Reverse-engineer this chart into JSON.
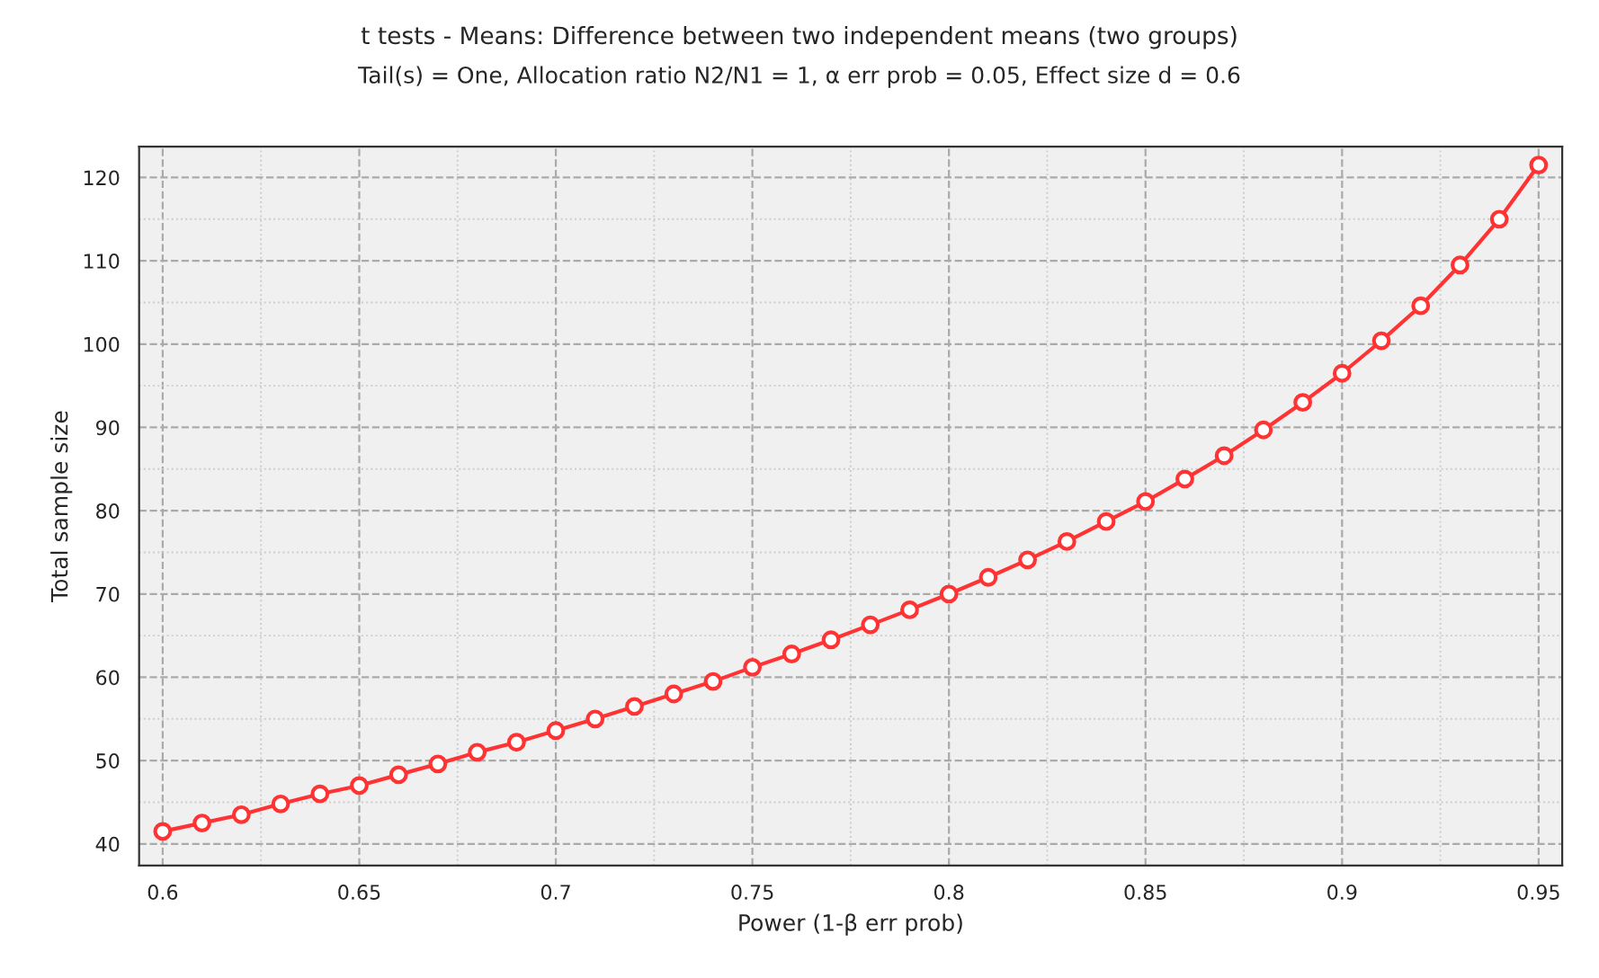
{
  "chart_data": {
    "type": "line",
    "title": "t tests - Means: Difference between two independent means (two groups)",
    "subtitle": "Tail(s) = One, Allocation ratio N2/N1 = 1, α err prob = 0.05, Effect size d = 0.6",
    "xlabel": "Power (1-β err prob)",
    "ylabel": "Total sample size",
    "x": [
      0.6,
      0.61,
      0.62,
      0.63,
      0.64,
      0.65,
      0.66,
      0.67,
      0.68,
      0.69,
      0.7,
      0.71,
      0.72,
      0.73,
      0.74,
      0.75,
      0.76,
      0.77,
      0.78,
      0.79,
      0.8,
      0.81,
      0.82,
      0.83,
      0.84,
      0.85,
      0.86,
      0.87,
      0.88,
      0.89,
      0.9,
      0.91,
      0.92,
      0.93,
      0.94,
      0.95
    ],
    "series": [
      {
        "color": "#ff3333",
        "values": [
          41.5,
          42.5,
          43.5,
          44.8,
          46,
          47,
          48.3,
          49.6,
          51,
          52.2,
          53.6,
          55,
          56.5,
          58,
          59.5,
          61.2,
          62.8,
          64.5,
          66.3,
          68.1,
          70,
          72,
          74.1,
          76.3,
          78.7,
          81.1,
          83.8,
          86.6,
          89.7,
          93,
          96.5,
          100.4,
          104.6,
          109.5,
          115,
          121.5
        ]
      }
    ],
    "xlim": [
      0.594,
      0.956
    ],
    "ylim": [
      37.4,
      123.7
    ],
    "xticks": [
      0.6,
      0.65,
      0.7,
      0.75,
      0.8,
      0.85,
      0.9,
      0.95
    ],
    "yticks": [
      40,
      50,
      60,
      70,
      80,
      90,
      100,
      110,
      120
    ],
    "grid": true,
    "marker": "circle",
    "line_style": "solid",
    "legend": false
  }
}
